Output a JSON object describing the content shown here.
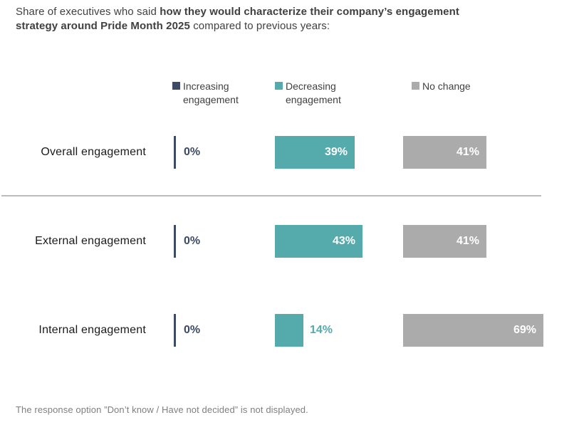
{
  "title": {
    "prefix": "Share of executives who said ",
    "bold": "how they would characterize their company’s engagement strategy around Pride Month 2025",
    "suffix": " compared to previous years:"
  },
  "legend": {
    "items": [
      {
        "label": "Increasing engagement",
        "color": "#3d4a64"
      },
      {
        "label": "Decreasing engagement",
        "color": "#55abac"
      },
      {
        "label": "No change",
        "color": "#ababab"
      }
    ]
  },
  "chart_data": {
    "type": "bar",
    "orientation": "horizontal",
    "title": "Share of executives who said how they would characterize their company’s engagement strategy around Pride Month 2025 compared to previous years:",
    "categories": [
      "Overall engagement",
      "External engagement",
      "Internal engagement"
    ],
    "series": [
      {
        "name": "Increasing engagement",
        "color": "#3d4a64",
        "values": [
          0,
          0,
          0
        ]
      },
      {
        "name": "Decreasing engagement",
        "color": "#55abac",
        "values": [
          39,
          43,
          14
        ]
      },
      {
        "name": "No change",
        "color": "#ababab",
        "values": [
          41,
          41,
          69
        ]
      }
    ],
    "unit": "%",
    "value_labels_shown": true,
    "legend_position": "top",
    "grid": false,
    "note": "The response option ”Don’t know / Have not decided” is not displayed."
  },
  "footer": {
    "note": "The response option ”Don’t know / Have not decided” is not displayed."
  }
}
